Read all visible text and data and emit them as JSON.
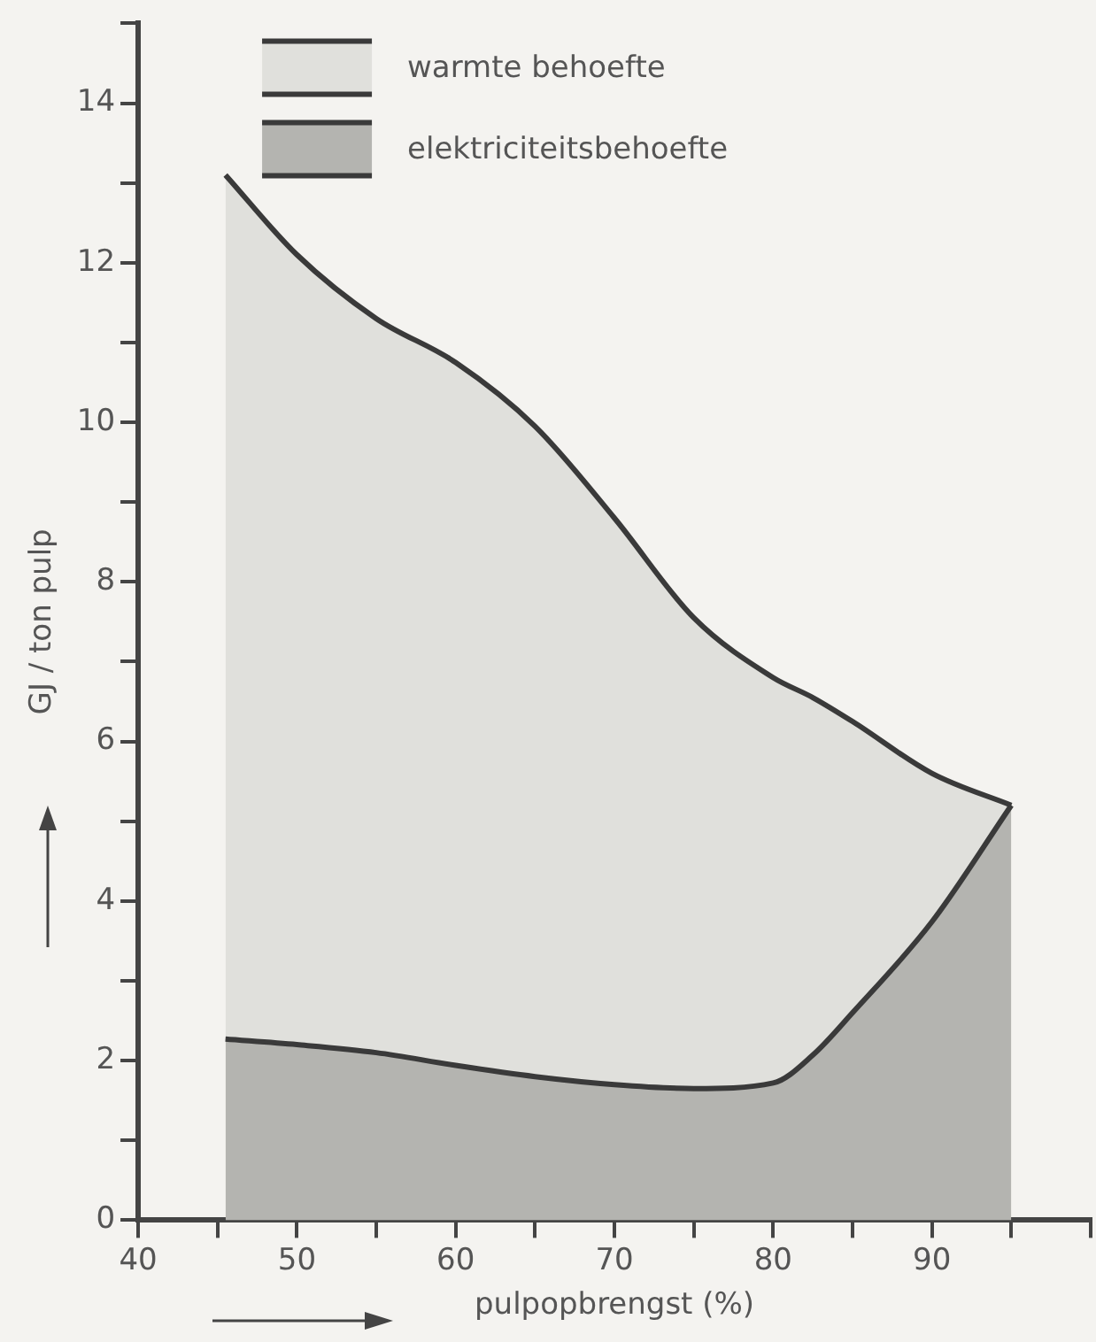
{
  "chart_data": {
    "type": "area",
    "stacked": true,
    "xlabel": "pulpopbrengst (%)",
    "ylabel": "GJ / ton pulp",
    "x": [
      45.5,
      50,
      55,
      60,
      65,
      70,
      75,
      80,
      82.5,
      85,
      90,
      95
    ],
    "series": [
      {
        "name": "elektriciteitsbehoefte",
        "color": "#b4b4b0",
        "values": [
          2.27,
          2.2,
          2.1,
          1.94,
          1.8,
          1.7,
          1.65,
          1.72,
          2.07,
          2.6,
          3.74,
          5.2
        ]
      },
      {
        "name": "warmte behoefte",
        "color": "#e0e0dc",
        "values": [
          10.83,
          9.9,
          9.2,
          8.81,
          8.15,
          7.1,
          5.9,
          5.08,
          4.48,
          3.65,
          1.86,
          0
        ]
      }
    ],
    "xlim": [
      40,
      100
    ],
    "xticks": [
      40,
      {
        "value": 45,
        "label": null
      },
      50,
      {
        "value": 55,
        "label": null
      },
      60,
      {
        "value": 65,
        "label": null
      },
      70,
      {
        "value": 75,
        "label": null
      },
      80,
      {
        "value": 85,
        "label": null
      },
      90,
      {
        "value": 95,
        "label": null
      },
      {
        "value": 100,
        "label": null
      }
    ],
    "ylim": [
      0,
      15
    ],
    "yticks": [
      0,
      {
        "value": 1,
        "label": null
      },
      2,
      {
        "value": 3,
        "label": null
      },
      4,
      {
        "value": 5,
        "label": null
      },
      6,
      {
        "value": 7,
        "label": null
      },
      8,
      {
        "value": 9,
        "label": null
      },
      10,
      {
        "value": 11,
        "label": null
      },
      12,
      {
        "value": 13,
        "label": null
      },
      14,
      {
        "value": 15,
        "label": null
      }
    ],
    "grid": false,
    "legend": "top left",
    "marker": "none",
    "line_style": "solid"
  }
}
